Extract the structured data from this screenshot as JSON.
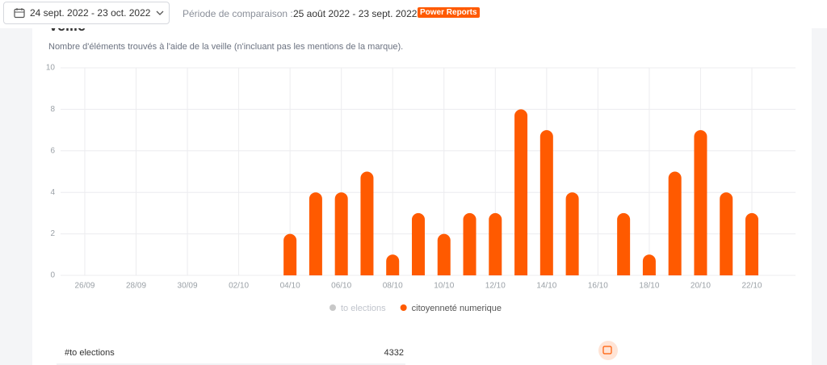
{
  "header": {
    "date_range": "24 sept. 2022 - 23 oct. 2022",
    "comparison_label": "Période de comparaison :",
    "comparison_range": "25 août 2022 - 23 sept. 2022",
    "badge": "Power Reports"
  },
  "card": {
    "title": "Veille",
    "subtitle": "Nombre d'éléments trouvés à l'aide de la veille (n'incluant pas les mentions de la marque)."
  },
  "chart_data": {
    "type": "bar",
    "categories": [
      null,
      "26/09",
      null,
      "28/09",
      null,
      "30/09",
      null,
      "02/10",
      null,
      "04/10",
      null,
      "06/10",
      null,
      "08/10",
      null,
      "10/10",
      null,
      "12/10",
      null,
      "14/10",
      null,
      "16/10",
      null,
      "18/10",
      null,
      "20/10",
      null,
      "22/10",
      null
    ],
    "values": [
      0,
      0,
      0,
      0,
      0,
      0,
      0,
      0,
      0,
      2,
      4,
      4,
      5,
      1,
      3,
      2,
      3,
      3,
      8,
      7,
      4,
      0,
      3,
      1,
      5,
      7,
      4,
      3,
      0
    ],
    "color": "#ff5a00",
    "ylim": [
      0,
      10
    ],
    "yticks": [
      0,
      2,
      4,
      6,
      8,
      10
    ],
    "grid": true,
    "legend": [
      {
        "name": "to elections",
        "color": "#c8c8c8"
      },
      {
        "name": "citoyenneté numerique",
        "color": "#ff5a00"
      }
    ]
  },
  "table": {
    "rows": [
      [
        "#to elections",
        "4332"
      ]
    ]
  }
}
